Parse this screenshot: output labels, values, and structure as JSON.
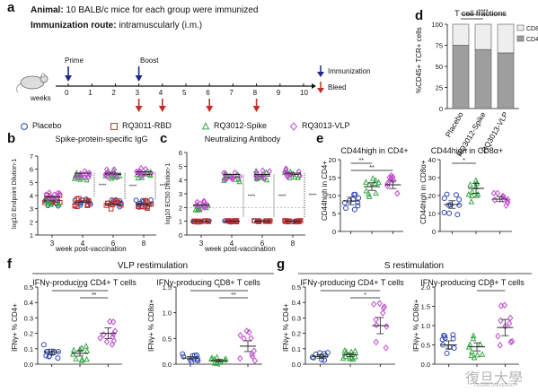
{
  "panel_a": {
    "label": "a",
    "animal_label": "Animal:",
    "animal_text": " 10 BALB/c mice for each group were immunized",
    "route_label": "Immunization route:",
    "route_text": " intramuscularly (i.m.)",
    "prime_label": "Prime",
    "boost_label": "Boost",
    "timeline_ticks": [
      "0",
      "1",
      "2",
      "3",
      "4",
      "5",
      "6",
      "7",
      "8",
      "9",
      "10"
    ],
    "weeks_label": "weeks",
    "legend_immunization": "Immunization",
    "legend_bleed": "Bleed",
    "colors": {
      "immunization": "#1b2a8a",
      "bleed": "#c0302b"
    }
  },
  "groups": [
    {
      "name": "Placebo",
      "color": "#2a44b0",
      "marker": "circle"
    },
    {
      "name": "RQ3011-RBD",
      "color": "#c0302b",
      "marker": "square"
    },
    {
      "name": "RQ3012-Spike",
      "color": "#3aa845",
      "marker": "triangle"
    },
    {
      "name": "RQ3013-VLP",
      "color": "#c04ad0",
      "marker": "diamond"
    }
  ],
  "panel_b": {
    "label": "b",
    "title": "Spike-protein-specific IgG",
    "ylabel": "log10 Endpoint Dilution-1",
    "xlabel": "week post-vaccination",
    "x_ticks": [
      "3",
      "4",
      "6",
      "8"
    ],
    "y_ticks": [
      "1",
      "2",
      "3",
      "4",
      "5",
      "6",
      "7"
    ]
  },
  "panel_c": {
    "label": "c",
    "title": "Neutralizing Antibody",
    "ylabel": "log10 EC50 Dilution-1",
    "xlabel": "week post-vaccination",
    "x_ticks": [
      "3",
      "4",
      "6",
      "8"
    ],
    "y_ticks": [
      "0",
      "1",
      "2",
      "3",
      "4",
      "5",
      "6"
    ]
  },
  "panel_d": {
    "label": "d",
    "title": "T cell fractions",
    "ylabel": "%CD45+ TCR+ cells",
    "y_ticks": [
      "0",
      "25",
      "50",
      "75",
      "100"
    ],
    "categories": [
      "Placebo",
      "RQ3012-Spike",
      "RQ3013-VLP"
    ],
    "legend": [
      "CD8+",
      "CD4+"
    ],
    "chart_data": {
      "type": "bar",
      "categories": [
        "Placebo",
        "RQ3012-Spike",
        "RQ3013-VLP"
      ],
      "series": [
        {
          "name": "CD4+",
          "values": [
            75,
            70,
            66
          ]
        },
        {
          "name": "CD8+",
          "values": [
            25,
            30,
            34
          ]
        }
      ],
      "ylim": [
        0,
        100
      ]
    },
    "sig": [
      "**",
      "****"
    ]
  },
  "panel_e": {
    "label": "e",
    "left_title": "CD44high in CD4+",
    "left_ylabel": "CD44high in CD4+",
    "left_y_ticks": [
      "0",
      "5",
      "10",
      "15",
      "20"
    ],
    "left_sig": [
      "**",
      "**"
    ],
    "right_title": "CD44high in CD8α+",
    "right_ylabel": "CD44high in CD8α+",
    "right_y_ticks": [
      "0",
      "10",
      "20",
      "30",
      "40"
    ],
    "right_sig": [
      "*"
    ]
  },
  "panel_f": {
    "label": "f",
    "restim": "VLP restimulation",
    "left_title": "IFNγ-producing CD4+ T cells",
    "left_ylabel": "IFNγ+ % CD4+",
    "left_y_ticks": [
      "0.0",
      "0.1",
      "0.2",
      "0.3",
      "0.4",
      "0.5"
    ],
    "left_sig": [
      "**",
      "**"
    ],
    "right_title": "IFNγ-producing CD8+ T cells",
    "right_ylabel": "IFNγ+ % CD8α+",
    "right_y_ticks": [
      "0.0",
      "0.5",
      "1.0",
      "1.5"
    ],
    "right_sig": [
      "*",
      "**"
    ]
  },
  "panel_g": {
    "label": "g",
    "restim": "S restimulation",
    "left_title": "IFNγ-producing CD4+ T cells",
    "left_ylabel": "IFNγ+ % CD4+",
    "left_y_ticks": [
      "0.0",
      "0.1",
      "0.2",
      "0.3",
      "0.4",
      "0.5"
    ],
    "left_sig": [
      "*",
      "*"
    ],
    "right_title": "IFNγ-producing CD8+ T cells",
    "right_ylabel": "IFNγ+ % CD8α+",
    "right_y_ticks": [
      "0.0",
      "0.5",
      "1.0",
      "1.5",
      "2.0"
    ],
    "right_sig": [
      "*"
    ]
  },
  "watermark": {
    "text": "復旦大學",
    "subtext": "FUDAN UNIVERSITY"
  }
}
